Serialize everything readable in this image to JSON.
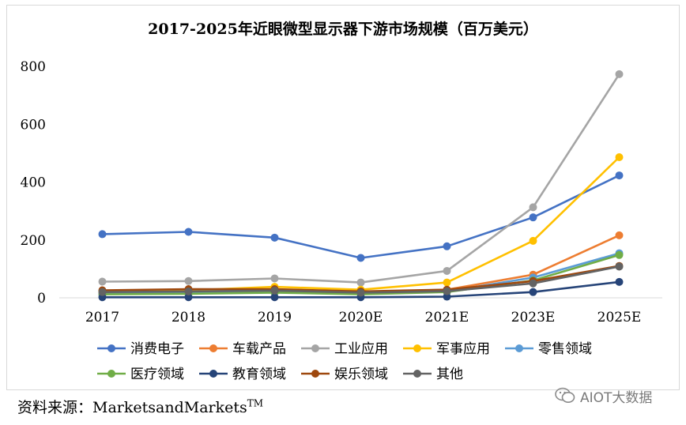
{
  "chart_data": {
    "type": "line",
    "title": "2017-2025年近眼微型显示器下游市场规模（百万美元）",
    "xlabel": "",
    "ylabel": "",
    "categories": [
      "2017",
      "2018",
      "2019",
      "2020E",
      "2021E",
      "2023E",
      "2025E"
    ],
    "ylim": [
      0,
      800
    ],
    "yticks": [
      "0",
      "200",
      "400",
      "600",
      "800"
    ],
    "ytick_values": [
      0,
      200,
      400,
      600,
      800
    ],
    "grid": false,
    "legend_position": "bottom",
    "series": [
      {
        "name": "消费电子",
        "color": "#4472c4",
        "values": [
          220,
          228,
          208,
          138,
          178,
          278,
          423
        ]
      },
      {
        "name": "车载产品",
        "color": "#ed7d31",
        "values": [
          20,
          22,
          28,
          20,
          28,
          80,
          216
        ]
      },
      {
        "name": "工业应用",
        "color": "#a5a5a5",
        "values": [
          56,
          58,
          67,
          53,
          93,
          313,
          773
        ]
      },
      {
        "name": "军事应用",
        "color": "#ffc000",
        "values": [
          22,
          26,
          38,
          28,
          53,
          197,
          486
        ]
      },
      {
        "name": "零售领域",
        "color": "#5b9bd5",
        "values": [
          14,
          16,
          20,
          14,
          22,
          70,
          154
        ]
      },
      {
        "name": "医疗领域",
        "color": "#70ad47",
        "values": [
          12,
          14,
          18,
          12,
          20,
          60,
          148
        ]
      },
      {
        "name": "教育领域",
        "color": "#264478",
        "values": [
          2,
          2,
          2,
          2,
          4,
          20,
          55
        ]
      },
      {
        "name": "娱乐领域",
        "color": "#9e480e",
        "values": [
          26,
          30,
          30,
          22,
          28,
          58,
          110
        ]
      },
      {
        "name": "其他",
        "color": "#636363",
        "values": [
          20,
          22,
          25,
          18,
          23,
          50,
          108
        ]
      }
    ]
  },
  "source": {
    "label": "资料来源：",
    "text": "MarketsandMarkets",
    "mark": "TM"
  },
  "watermark": {
    "text": "AIOT大数据",
    "icon": "wechat-icon"
  }
}
